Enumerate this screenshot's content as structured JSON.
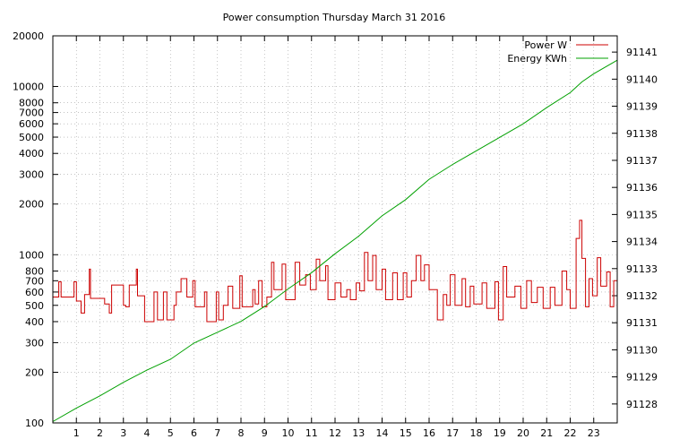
{
  "chart_data": {
    "type": "line",
    "title": "Power consumption Thursday March 31 2016",
    "xlabel": "",
    "ylabel": "",
    "y2label": "",
    "xlim": [
      0,
      24
    ],
    "ylim": [
      100,
      20000
    ],
    "yscale": "log",
    "y2lim": [
      91127.3,
      91141.6
    ],
    "grid": true,
    "legend_position": "top-right",
    "x_ticks": [
      1,
      2,
      3,
      4,
      5,
      6,
      7,
      8,
      9,
      10,
      11,
      12,
      13,
      14,
      15,
      16,
      17,
      18,
      19,
      20,
      21,
      22,
      23
    ],
    "x_tick_labels": [
      "1",
      "2",
      "3",
      "4",
      "5",
      "6",
      "7",
      "8",
      "9",
      "10",
      "11",
      "12",
      "13",
      "14",
      "15",
      "16",
      "17",
      "18",
      "19",
      "20",
      "21",
      "22",
      "23"
    ],
    "y_ticks": [
      100,
      200,
      300,
      400,
      500,
      600,
      700,
      800,
      1000,
      2000,
      3000,
      4000,
      5000,
      6000,
      7000,
      8000,
      10000,
      20000
    ],
    "y_tick_labels": [
      "100",
      "200",
      "300",
      "400",
      "500",
      "600",
      "700",
      "800",
      "1000",
      "2000",
      "3000",
      "4000",
      "5000",
      "6000",
      "7000",
      "8000",
      "10000",
      "20000"
    ],
    "y2_ticks": [
      91128,
      91129,
      91130,
      91131,
      91132,
      91133,
      91134,
      91135,
      91136,
      91137,
      91138,
      91139,
      91140,
      91141
    ],
    "y2_tick_labels": [
      "91128",
      "91129",
      "91130",
      "91131",
      "91132",
      "91133",
      "91134",
      "91135",
      "91136",
      "91137",
      "91138",
      "91139",
      "91140",
      "91141"
    ],
    "series": [
      {
        "name": "Power W",
        "axis": "left",
        "color": "#cc0000",
        "points": [
          [
            0,
            560
          ],
          [
            0.25,
            690
          ],
          [
            0.35,
            560
          ],
          [
            0.9,
            690
          ],
          [
            1.0,
            530
          ],
          [
            1.2,
            450
          ],
          [
            1.35,
            580
          ],
          [
            1.55,
            820
          ],
          [
            1.6,
            550
          ],
          [
            2.2,
            510
          ],
          [
            2.4,
            450
          ],
          [
            2.5,
            660
          ],
          [
            3.0,
            500
          ],
          [
            3.1,
            490
          ],
          [
            3.25,
            660
          ],
          [
            3.55,
            820
          ],
          [
            3.6,
            570
          ],
          [
            3.9,
            400
          ],
          [
            4.3,
            600
          ],
          [
            4.45,
            410
          ],
          [
            4.7,
            600
          ],
          [
            4.85,
            410
          ],
          [
            5.15,
            500
          ],
          [
            5.25,
            600
          ],
          [
            5.45,
            720
          ],
          [
            5.7,
            560
          ],
          [
            5.95,
            700
          ],
          [
            6.05,
            490
          ],
          [
            6.45,
            600
          ],
          [
            6.55,
            400
          ],
          [
            6.95,
            600
          ],
          [
            7.05,
            410
          ],
          [
            7.25,
            500
          ],
          [
            7.45,
            650
          ],
          [
            7.65,
            480
          ],
          [
            7.95,
            750
          ],
          [
            8.05,
            490
          ],
          [
            8.5,
            620
          ],
          [
            8.6,
            510
          ],
          [
            8.75,
            700
          ],
          [
            8.9,
            490
          ],
          [
            9.1,
            560
          ],
          [
            9.3,
            900
          ],
          [
            9.4,
            620
          ],
          [
            9.75,
            880
          ],
          [
            9.9,
            540
          ],
          [
            10.3,
            900
          ],
          [
            10.5,
            660
          ],
          [
            10.75,
            760
          ],
          [
            10.95,
            620
          ],
          [
            11.2,
            940
          ],
          [
            11.35,
            700
          ],
          [
            11.6,
            860
          ],
          [
            11.7,
            540
          ],
          [
            12.0,
            680
          ],
          [
            12.25,
            560
          ],
          [
            12.5,
            620
          ],
          [
            12.65,
            540
          ],
          [
            12.9,
            680
          ],
          [
            13.05,
            610
          ],
          [
            13.25,
            1030
          ],
          [
            13.4,
            700
          ],
          [
            13.6,
            990
          ],
          [
            13.75,
            620
          ],
          [
            14.0,
            820
          ],
          [
            14.15,
            540
          ],
          [
            14.45,
            780
          ],
          [
            14.65,
            540
          ],
          [
            14.9,
            780
          ],
          [
            15.05,
            560
          ],
          [
            15.25,
            700
          ],
          [
            15.45,
            990
          ],
          [
            15.65,
            700
          ],
          [
            15.8,
            870
          ],
          [
            16.0,
            620
          ],
          [
            16.2,
            620
          ],
          [
            16.35,
            410
          ],
          [
            16.6,
            580
          ],
          [
            16.75,
            500
          ],
          [
            16.9,
            760
          ],
          [
            17.1,
            500
          ],
          [
            17.4,
            720
          ],
          [
            17.55,
            490
          ],
          [
            17.75,
            650
          ],
          [
            17.9,
            510
          ],
          [
            18.25,
            680
          ],
          [
            18.45,
            480
          ],
          [
            18.8,
            690
          ],
          [
            18.95,
            410
          ],
          [
            19.15,
            850
          ],
          [
            19.3,
            560
          ],
          [
            19.65,
            650
          ],
          [
            19.9,
            480
          ],
          [
            20.15,
            700
          ],
          [
            20.35,
            520
          ],
          [
            20.6,
            640
          ],
          [
            20.85,
            480
          ],
          [
            21.15,
            640
          ],
          [
            21.35,
            500
          ],
          [
            21.65,
            800
          ],
          [
            21.85,
            620
          ],
          [
            22.0,
            480
          ],
          [
            22.25,
            1250
          ],
          [
            22.4,
            1600
          ],
          [
            22.5,
            950
          ],
          [
            22.65,
            490
          ],
          [
            22.8,
            720
          ],
          [
            22.95,
            570
          ],
          [
            23.15,
            960
          ],
          [
            23.3,
            650
          ],
          [
            23.55,
            790
          ],
          [
            23.7,
            490
          ],
          [
            23.85,
            700
          ],
          [
            24.0,
            480
          ]
        ]
      },
      {
        "name": "Energy KWh",
        "axis": "right",
        "color": "#00a000",
        "points": [
          [
            0,
            91127.35
          ],
          [
            1,
            91127.85
          ],
          [
            2,
            91128.3
          ],
          [
            3,
            91128.8
          ],
          [
            4,
            91129.25
          ],
          [
            5,
            91129.65
          ],
          [
            6,
            91130.25
          ],
          [
            7,
            91130.65
          ],
          [
            8,
            91131.05
          ],
          [
            9,
            91131.6
          ],
          [
            10,
            91132.25
          ],
          [
            11,
            91132.85
          ],
          [
            12,
            91133.55
          ],
          [
            13,
            91134.2
          ],
          [
            14,
            91134.95
          ],
          [
            15,
            91135.55
          ],
          [
            16,
            91136.3
          ],
          [
            17,
            91136.85
          ],
          [
            18,
            91137.35
          ],
          [
            19,
            91137.85
          ],
          [
            20,
            91138.35
          ],
          [
            21,
            91138.95
          ],
          [
            22,
            91139.5
          ],
          [
            22.5,
            91139.9
          ],
          [
            23,
            91140.2
          ],
          [
            24,
            91140.7
          ]
        ]
      }
    ]
  }
}
